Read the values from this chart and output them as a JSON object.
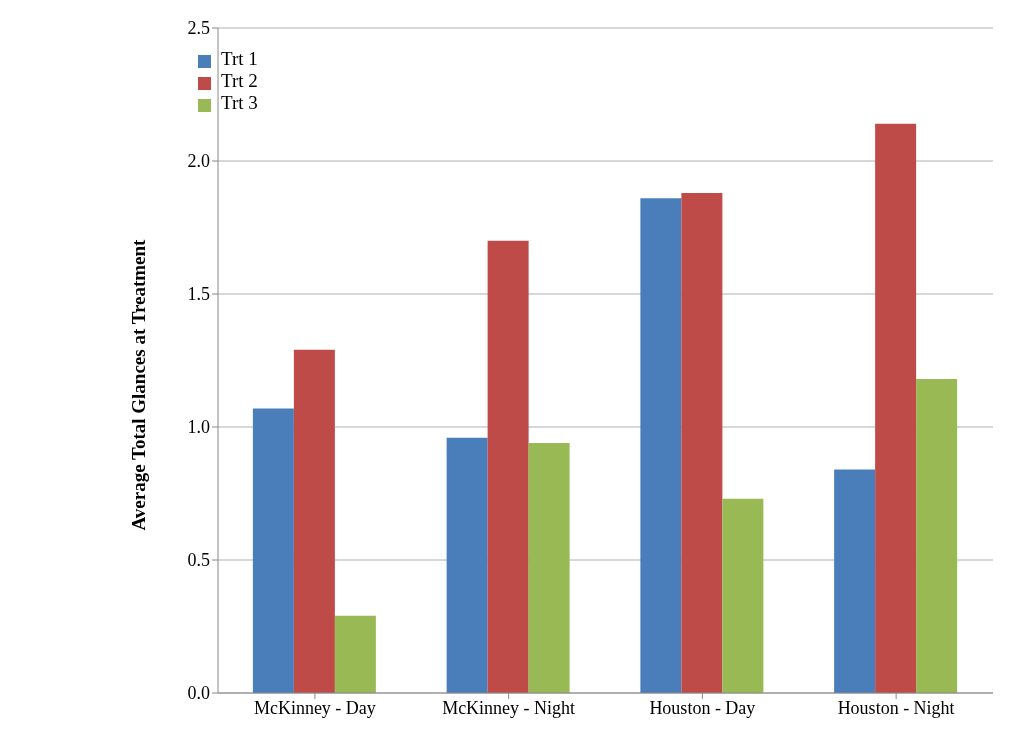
{
  "chart_data": {
    "type": "bar",
    "ylabel": "Average Total Glances at Treatment",
    "categories": [
      "McKinney - Day",
      "McKinney - Night",
      "Houston - Day",
      "Houston - Night"
    ],
    "series": [
      {
        "name": "Trt 1",
        "color": "#4a7ebb",
        "values": [
          1.07,
          0.96,
          1.86,
          0.84
        ]
      },
      {
        "name": "Trt 2",
        "color": "#be4b48",
        "values": [
          1.29,
          1.7,
          1.88,
          2.14
        ]
      },
      {
        "name": "Trt 3",
        "color": "#98b954",
        "values": [
          0.29,
          0.94,
          0.73,
          1.18
        ]
      }
    ],
    "ylim": [
      0,
      2.5
    ],
    "yticks": [
      {
        "value": 0,
        "label": "0.0"
      },
      {
        "value": 0.5,
        "label": "0.5"
      },
      {
        "value": 1,
        "label": "1.0"
      },
      {
        "value": 1.5,
        "label": "1.5"
      },
      {
        "value": 2,
        "label": "2.0"
      },
      {
        "value": 2.5,
        "label": "2.5"
      }
    ],
    "grid": "y",
    "legend": "top left"
  }
}
